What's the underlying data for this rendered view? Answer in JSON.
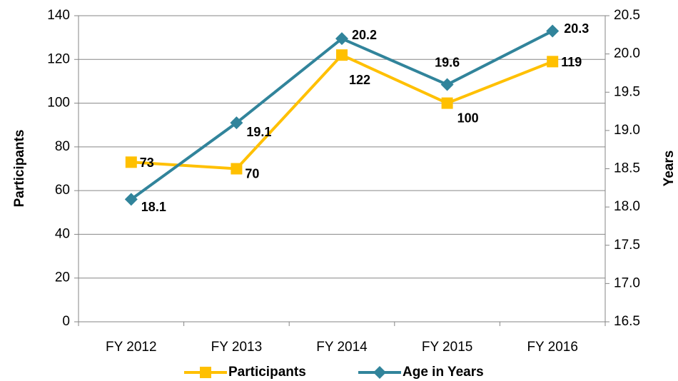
{
  "chart_data": {
    "type": "line",
    "categories": [
      "FY 2012",
      "FY 2013",
      "FY 2014",
      "FY 2015",
      "FY 2016"
    ],
    "y_label": "Participants",
    "y2_label": "Years",
    "series": [
      {
        "name": "Participants",
        "color": "#ffc000",
        "marker": "square",
        "values": [
          73,
          70,
          122,
          100,
          119
        ]
      },
      {
        "name": "Age in Years",
        "color": "#31849b",
        "marker": "diamond",
        "axis": "y2",
        "values": [
          18.1,
          19.1,
          20.2,
          19.6,
          20.3
        ]
      }
    ],
    "ylim": [
      0,
      140
    ],
    "yticks": [
      0,
      20,
      40,
      60,
      80,
      100,
      120,
      140
    ],
    "y2lim": [
      16.5,
      20.5
    ],
    "y2ticks": [
      16.5,
      {
        "value": 17,
        "label": "17.0"
      },
      17.5,
      {
        "value": 18,
        "label": "18.0"
      },
      18.5,
      {
        "value": 19,
        "label": "19.0"
      },
      19.5,
      {
        "value": 20,
        "label": "20.0"
      },
      20.5
    ],
    "grid": true,
    "legend": "bottom"
  }
}
